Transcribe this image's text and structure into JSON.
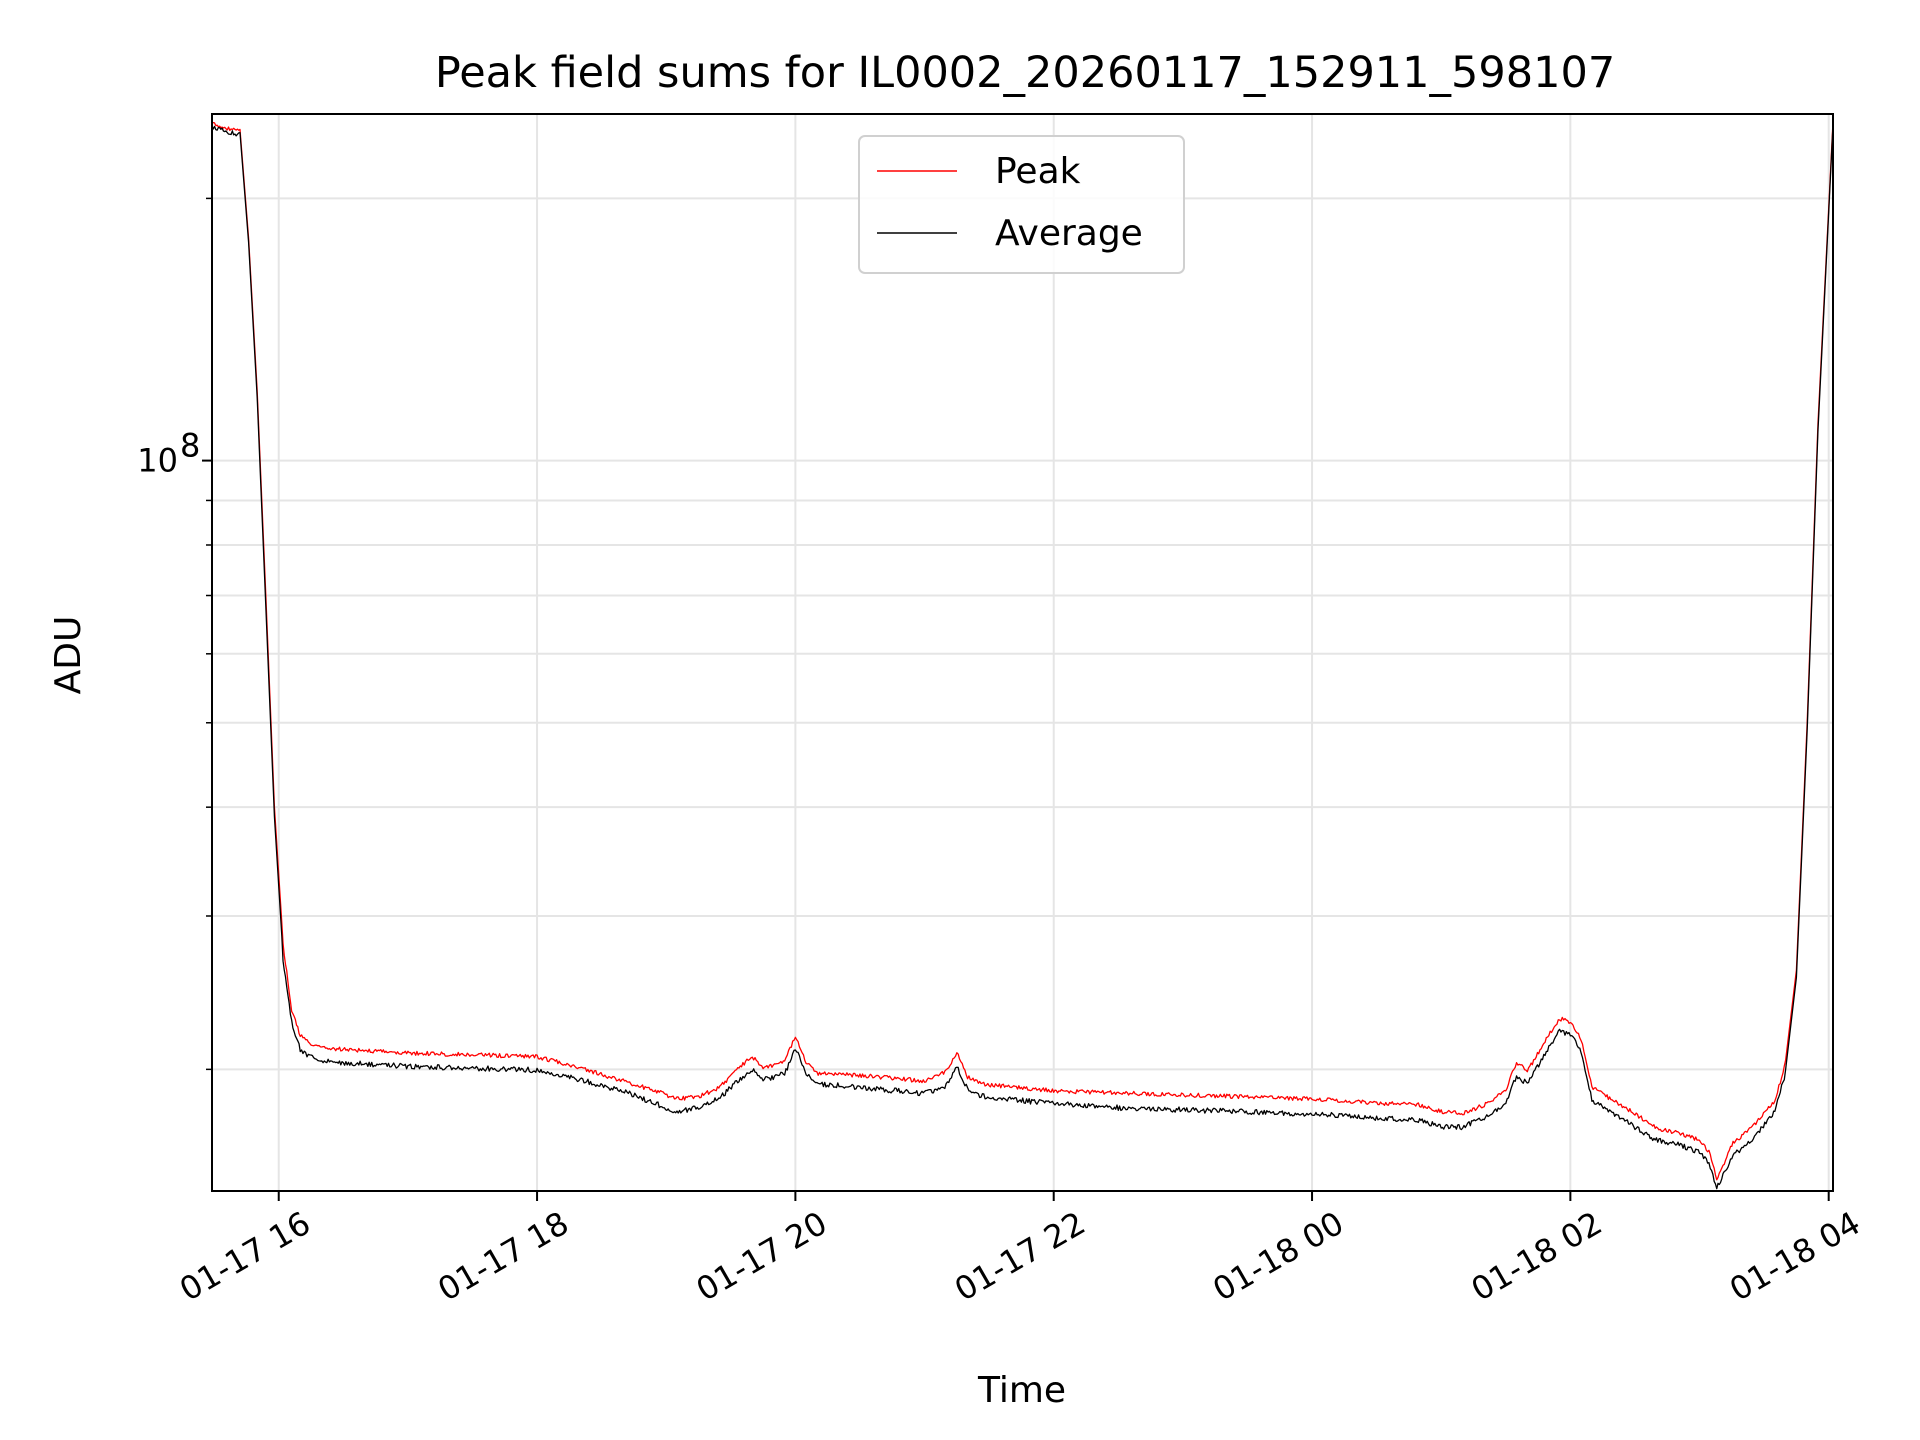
{
  "chart_data": {
    "type": "line",
    "title": "Peak field sums for IL0002_20260117_152911_598107",
    "xlabel": "Time",
    "ylabel": "ADU",
    "y_scale": "log",
    "xlim": [
      "2026-01-17 15:29",
      "2026-01-18 04:02"
    ],
    "ylim": [
      14500000,
      250000000
    ],
    "x_ticks": [
      {
        "value": "2026-01-17 16:00",
        "label": "01-17 16"
      },
      {
        "value": "2026-01-17 18:00",
        "label": "01-17 18"
      },
      {
        "value": "2026-01-17 20:00",
        "label": "01-17 20"
      },
      {
        "value": "2026-01-17 22:00",
        "label": "01-17 22"
      },
      {
        "value": "2026-01-18 00:00",
        "label": "01-18 00"
      },
      {
        "value": "2026-01-18 02:00",
        "label": "01-18 02"
      },
      {
        "value": "2026-01-18 04:00",
        "label": "01-18 04"
      }
    ],
    "y_major_ticks": [
      {
        "value": 100000000,
        "base": "10",
        "exponent": "8"
      }
    ],
    "y_minor_ticks": [
      20000000,
      30000000,
      40000000,
      50000000,
      60000000,
      70000000,
      80000000,
      90000000,
      200000000
    ],
    "grid": true,
    "legend": {
      "placement": "upper-center"
    },
    "series": [
      {
        "name": "Peak",
        "color": "#ff0000",
        "x": [
          "2026-01-17 15:29",
          "2026-01-17 15:42",
          "2026-01-17 15:46",
          "2026-01-17 15:50",
          "2026-01-17 15:54",
          "2026-01-17 15:58",
          "2026-01-17 16:02",
          "2026-01-17 16:06",
          "2026-01-17 16:10",
          "2026-01-17 16:15",
          "2026-01-17 16:20",
          "2026-01-17 16:30",
          "2026-01-17 17:00",
          "2026-01-17 17:30",
          "2026-01-17 18:00",
          "2026-01-17 18:20",
          "2026-01-17 18:40",
          "2026-01-17 18:55",
          "2026-01-17 19:05",
          "2026-01-17 19:15",
          "2026-01-17 19:25",
          "2026-01-17 19:35",
          "2026-01-17 19:40",
          "2026-01-17 19:45",
          "2026-01-17 19:55",
          "2026-01-17 20:00",
          "2026-01-17 20:05",
          "2026-01-17 20:10",
          "2026-01-17 20:30",
          "2026-01-17 21:00",
          "2026-01-17 21:10",
          "2026-01-17 21:15",
          "2026-01-17 21:20",
          "2026-01-17 21:25",
          "2026-01-17 21:30",
          "2026-01-17 22:00",
          "2026-01-17 22:30",
          "2026-01-17 23:00",
          "2026-01-17 23:30",
          "2026-01-18 00:00",
          "2026-01-18 00:30",
          "2026-01-18 00:50",
          "2026-01-18 01:00",
          "2026-01-18 01:10",
          "2026-01-18 01:20",
          "2026-01-18 01:30",
          "2026-01-18 01:35",
          "2026-01-18 01:40",
          "2026-01-18 01:50",
          "2026-01-18 01:55",
          "2026-01-18 02:00",
          "2026-01-18 02:05",
          "2026-01-18 02:10",
          "2026-01-18 02:20",
          "2026-01-18 02:30",
          "2026-01-18 02:40",
          "2026-01-18 02:50",
          "2026-01-18 03:00",
          "2026-01-18 03:05",
          "2026-01-18 03:08",
          "2026-01-18 03:15",
          "2026-01-18 03:25",
          "2026-01-18 03:35",
          "2026-01-18 03:40",
          "2026-01-18 03:45",
          "2026-01-18 03:50",
          "2026-01-18 03:55",
          "2026-01-18 04:02"
        ],
        "y": [
          245000000,
          240000000,
          180000000,
          120000000,
          70000000,
          40000000,
          28000000,
          23500000,
          22000000,
          21500000,
          21300000,
          21200000,
          21000000,
          20900000,
          20800000,
          20200000,
          19500000,
          19000000,
          18600000,
          18700000,
          19200000,
          20300000,
          20800000,
          20200000,
          20500000,
          22000000,
          20500000,
          19900000,
          19800000,
          19500000,
          20000000,
          21000000,
          19700000,
          19400000,
          19300000,
          19000000,
          18900000,
          18800000,
          18700000,
          18600000,
          18400000,
          18300000,
          18000000,
          17900000,
          18300000,
          19000000,
          20500000,
          20000000,
          22000000,
          23000000,
          22800000,
          21800000,
          19200000,
          18500000,
          17900000,
          17200000,
          17000000,
          16700000,
          16100000,
          15000000,
          16500000,
          17300000,
          18500000,
          20500000,
          26000000,
          50000000,
          110000000,
          245000000
        ]
      },
      {
        "name": "Average",
        "color": "#000000",
        "x": [
          "2026-01-17 15:29",
          "2026-01-17 15:42",
          "2026-01-17 15:46",
          "2026-01-17 15:50",
          "2026-01-17 15:54",
          "2026-01-17 15:58",
          "2026-01-17 16:02",
          "2026-01-17 16:06",
          "2026-01-17 16:10",
          "2026-01-17 16:15",
          "2026-01-17 16:20",
          "2026-01-17 16:30",
          "2026-01-17 17:00",
          "2026-01-17 17:30",
          "2026-01-17 18:00",
          "2026-01-17 18:20",
          "2026-01-17 18:40",
          "2026-01-17 18:55",
          "2026-01-17 19:05",
          "2026-01-17 19:15",
          "2026-01-17 19:25",
          "2026-01-17 19:35",
          "2026-01-17 19:40",
          "2026-01-17 19:45",
          "2026-01-17 19:55",
          "2026-01-17 20:00",
          "2026-01-17 20:05",
          "2026-01-17 20:10",
          "2026-01-17 20:30",
          "2026-01-17 21:00",
          "2026-01-17 21:10",
          "2026-01-17 21:15",
          "2026-01-17 21:20",
          "2026-01-17 21:25",
          "2026-01-17 21:30",
          "2026-01-17 22:00",
          "2026-01-17 22:30",
          "2026-01-17 23:00",
          "2026-01-17 23:30",
          "2026-01-18 00:00",
          "2026-01-18 00:30",
          "2026-01-18 00:50",
          "2026-01-18 01:00",
          "2026-01-18 01:10",
          "2026-01-18 01:20",
          "2026-01-18 01:30",
          "2026-01-18 01:35",
          "2026-01-18 01:40",
          "2026-01-18 01:50",
          "2026-01-18 01:55",
          "2026-01-18 02:00",
          "2026-01-18 02:05",
          "2026-01-18 02:10",
          "2026-01-18 02:20",
          "2026-01-18 02:30",
          "2026-01-18 02:40",
          "2026-01-18 02:50",
          "2026-01-18 03:00",
          "2026-01-18 03:05",
          "2026-01-18 03:08",
          "2026-01-18 03:15",
          "2026-01-18 03:25",
          "2026-01-18 03:35",
          "2026-01-18 03:40",
          "2026-01-18 03:45",
          "2026-01-18 03:50",
          "2026-01-18 03:55",
          "2026-01-18 04:02"
        ],
        "y": [
          243000000,
          238000000,
          178000000,
          118000000,
          68000000,
          39000000,
          27000000,
          22800000,
          21200000,
          20800000,
          20600000,
          20500000,
          20300000,
          20200000,
          20100000,
          19600000,
          19000000,
          18400000,
          18000000,
          18200000,
          18700000,
          19700000,
          20100000,
          19600000,
          19900000,
          21300000,
          19900000,
          19400000,
          19200000,
          18900000,
          19300000,
          20300000,
          19100000,
          18800000,
          18700000,
          18400000,
          18200000,
          18100000,
          18000000,
          17900000,
          17700000,
          17600000,
          17300000,
          17300000,
          17700000,
          18400000,
          19800000,
          19400000,
          21300000,
          22300000,
          22100000,
          21100000,
          18600000,
          17900000,
          17300000,
          16700000,
          16500000,
          16200000,
          15600000,
          14700000,
          16000000,
          16800000,
          18000000,
          20000000,
          25500000,
          49000000,
          108000000,
          243000000
        ]
      }
    ]
  }
}
